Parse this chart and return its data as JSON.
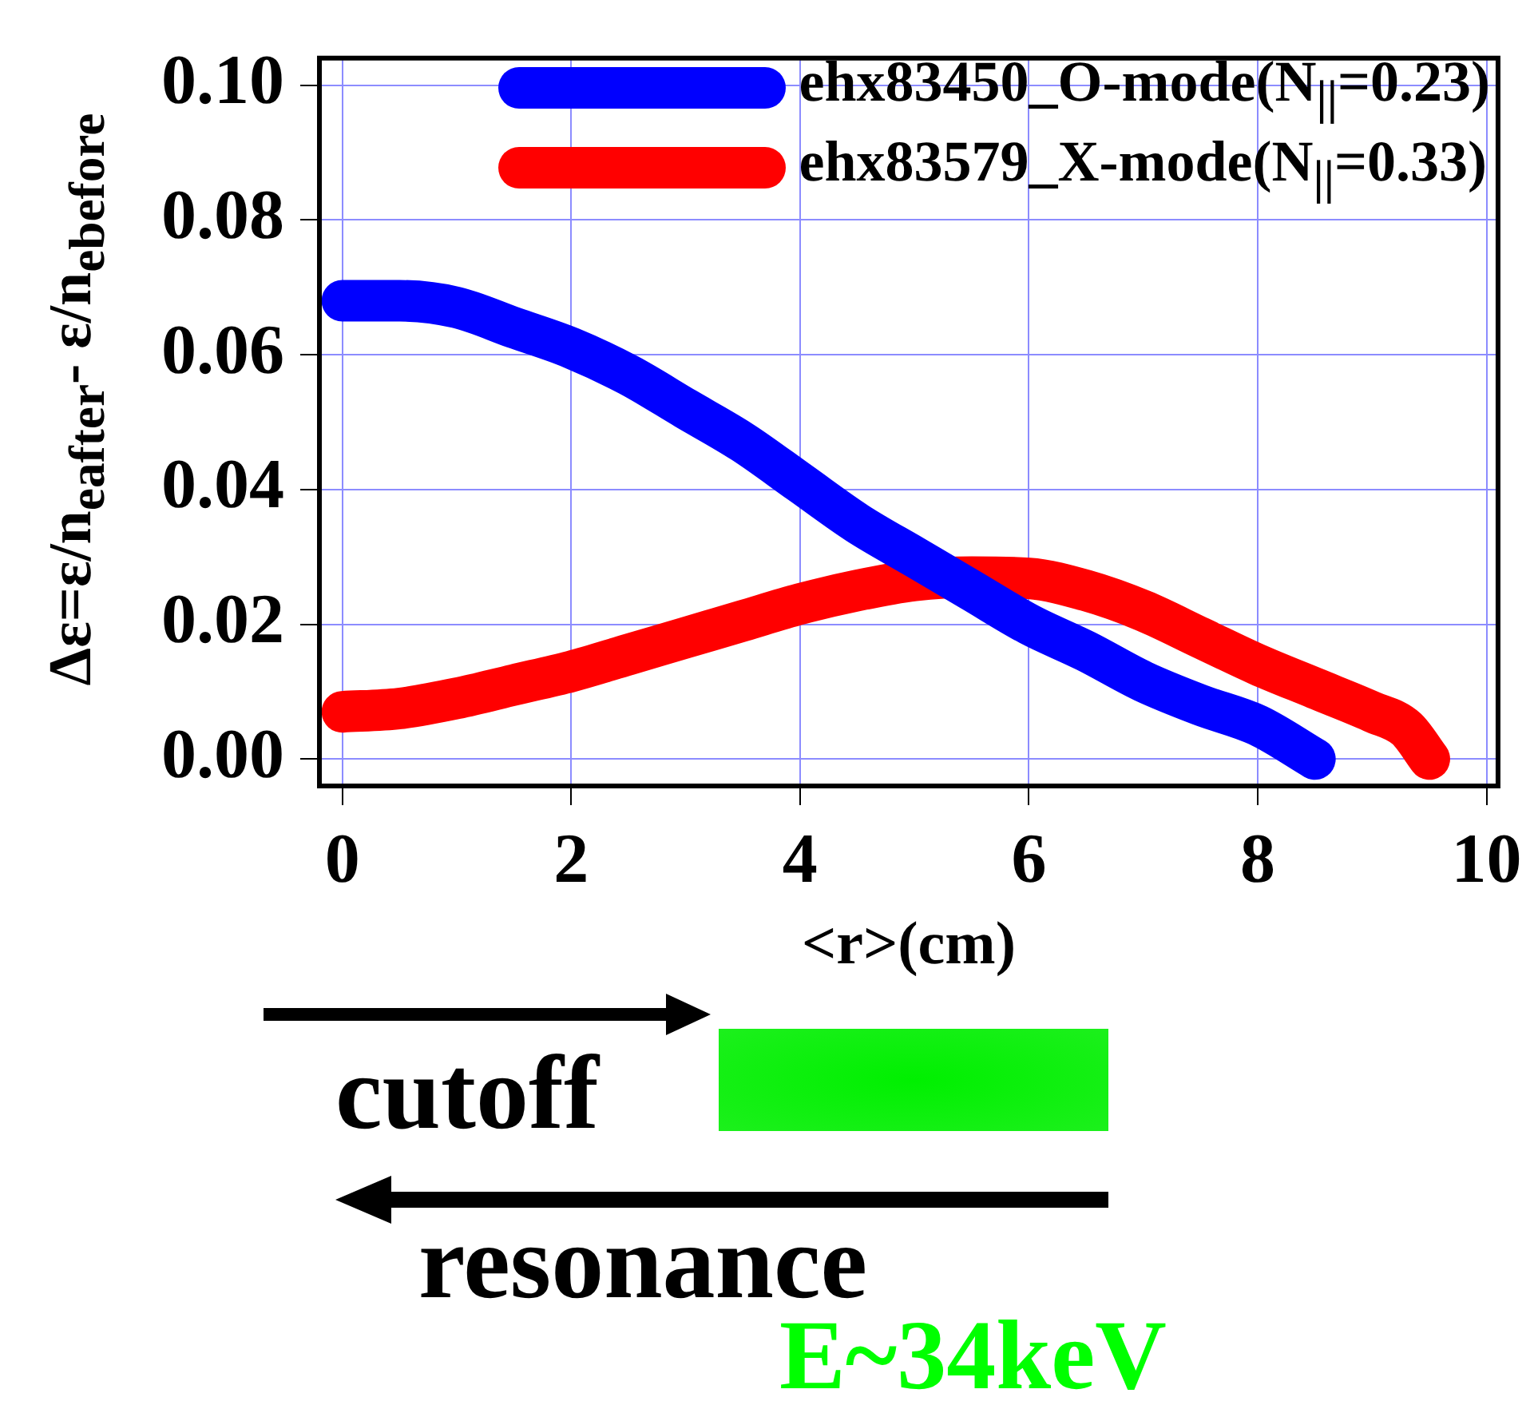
{
  "chart_data": {
    "type": "line",
    "xlabel": "<r>(cm)",
    "ylabel": "Δε=ε/n$_{eafter}$- ε/n$_{ebefore}$",
    "xlim": [
      -0.2,
      10.1
    ],
    "xticks": [
      0,
      2,
      4,
      6,
      8,
      10
    ],
    "ylim": [
      -0.004,
      0.104
    ],
    "yticks": [
      {
        "value": 0,
        "label": "0.00"
      },
      {
        "value": 0.02,
        "label": "0.02"
      },
      {
        "value": 0.04,
        "label": "0.04"
      },
      {
        "value": 0.06,
        "label": "0.06"
      },
      {
        "value": 0.08,
        "label": "0.08"
      },
      {
        "value": 0.1,
        "label": "0.10"
      }
    ],
    "grid": true,
    "legend": "top right",
    "series": [
      {
        "name": "ehx83450_O-mode(N$_{||}$=0.23)",
        "color": "#0000ff",
        "x": [
          0,
          0.5,
          1,
          1.5,
          2,
          2.5,
          3,
          3.5,
          4,
          4.5,
          5,
          5.5,
          6,
          6.5,
          7,
          7.5,
          8,
          8.5
        ],
        "values": [
          0.068,
          0.068,
          0.067,
          0.064,
          0.061,
          0.057,
          0.052,
          0.047,
          0.041,
          0.035,
          0.03,
          0.025,
          0.02,
          0.016,
          0.0115,
          0.008,
          0.005,
          0.0
        ]
      },
      {
        "name": "ehx83579_X-mode(N$_{||}$=0.33)",
        "color": "#ff0000",
        "x": [
          0,
          0.5,
          1,
          1.5,
          2,
          2.5,
          3,
          3.5,
          4,
          4.5,
          5,
          5.5,
          6,
          6.5,
          7,
          7.5,
          8,
          8.5,
          9,
          9.3,
          9.5
        ],
        "values": [
          0.007,
          0.0075,
          0.009,
          0.011,
          0.013,
          0.0155,
          0.018,
          0.0205,
          0.023,
          0.025,
          0.0265,
          0.027,
          0.0268,
          0.025,
          0.022,
          0.018,
          0.014,
          0.0105,
          0.007,
          0.0045,
          0.0
        ]
      }
    ],
    "annotations": [
      "cutoff",
      "resonance",
      "E~34keV"
    ]
  }
}
